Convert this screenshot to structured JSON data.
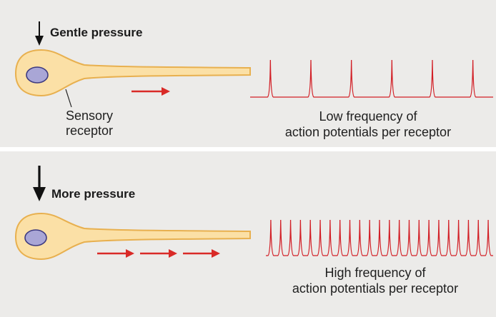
{
  "top_panel": {
    "title": "Gentle pressure",
    "receptor_label_line1": "Sensory",
    "receptor_label_line2": "receptor",
    "caption_line1": "Low frequency of",
    "caption_line2": "action potentials per receptor",
    "spike_count": 6,
    "arrow_count": 1
  },
  "bottom_panel": {
    "title": "More pressure",
    "caption_line1": "High frequency of",
    "caption_line2": "action potentials per receptor",
    "spike_count": 23,
    "arrow_count": 3
  },
  "colors": {
    "panel_background": "#ecebe9",
    "receptor_fill": "#fbe0a6",
    "receptor_outline": "#e8b04f",
    "nucleus_fill": "#a9a6d6",
    "nucleus_outline": "#3d3a80",
    "spike_color": "#d21f26",
    "signal_arrow_color": "#d92a27",
    "pressure_arrow_color": "#111111"
  },
  "icons": {
    "pressure_arrow": "down-arrow-icon",
    "signal_arrow": "right-arrow-icon"
  }
}
